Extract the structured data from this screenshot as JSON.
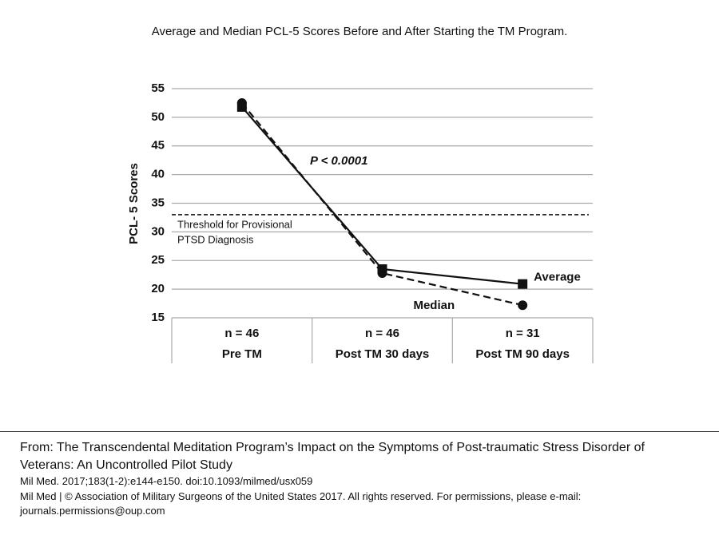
{
  "chart_data": {
    "type": "line",
    "title": "Average and Median PCL-5 Scores Before and After Starting the TM Program.",
    "y_label": "PCL- 5 Scores",
    "categories": [
      "Pre TM",
      "Post TM 30 days",
      "Post TM 90 days"
    ],
    "n_labels": [
      "n = 46",
      "n = 46",
      "n = 31"
    ],
    "series": [
      {
        "name": "Average",
        "color": "#111111",
        "dashed": false,
        "marker": "square",
        "values": [
          51.8,
          23.5,
          20.9
        ]
      },
      {
        "name": "Median",
        "color": "#111111",
        "dashed": true,
        "marker": "circle",
        "values": [
          52.5,
          22.8,
          17.2
        ]
      }
    ],
    "ylim": [
      15,
      55
    ],
    "yticks": [
      15,
      20,
      25,
      30,
      35,
      40,
      45,
      50,
      55
    ],
    "grid": true,
    "threshold": {
      "value": 33,
      "label": [
        "Threshold for Provisional",
        "PTSD Diagnosis"
      ]
    },
    "annotation": "P < 0.0001"
  },
  "footer": {
    "title": [
      "From: The Transcendental Meditation Program’s Impact on the Symptoms of Post-traumatic Stress Disorder of",
      "Veterans: An Uncontrolled Pilot Study"
    ],
    "citation": "Mil Med. 2017;183(1-2):e144-e150. doi:10.1093/milmed/usx059",
    "copyright": [
      "Mil Med | © Association of Military Surgeons of the United States 2017. All rights reserved. For permissions, please e-mail:",
      "journals.permissions@oup.com"
    ]
  }
}
